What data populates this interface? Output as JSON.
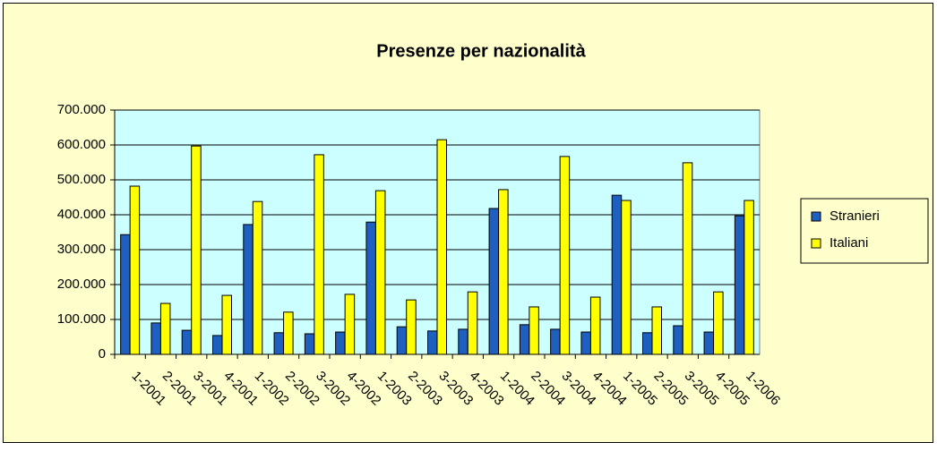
{
  "chart_data": {
    "type": "bar",
    "title": "Presenze per nazionalità",
    "categories": [
      "1-2001",
      "2-2001",
      "3-2001",
      "4-2001",
      "1-2002",
      "2-2002",
      "3-2002",
      "4-2002",
      "1-2003",
      "2-2003",
      "3-2003",
      "4-2003",
      "1-2004",
      "2-2004",
      "3-2004",
      "4-2004",
      "1-2005",
      "2-2005",
      "3-2005",
      "4-2005",
      "1-2006"
    ],
    "series": [
      {
        "name": "Stranieri",
        "color": "#1f5fbf",
        "values": [
          343000,
          90000,
          69000,
          54000,
          372000,
          62000,
          59000,
          64000,
          379000,
          79000,
          67000,
          72000,
          418000,
          85000,
          72000,
          64000,
          456000,
          62000,
          82000,
          64000,
          397000
        ]
      },
      {
        "name": "Italiani",
        "color": "#ffff00",
        "values": [
          482000,
          146000,
          597000,
          169000,
          438000,
          121000,
          572000,
          172000,
          469000,
          156000,
          615000,
          179000,
          472000,
          136000,
          567000,
          164000,
          441000,
          136000,
          549000,
          179000,
          441000
        ]
      }
    ],
    "ylim": [
      0,
      700000
    ],
    "yticks": [
      0,
      {
        "value": 100000,
        "label": "100.000"
      },
      {
        "value": 200000,
        "label": "200.000"
      },
      {
        "value": 300000,
        "label": "300.000"
      },
      {
        "value": 400000,
        "label": "400.000"
      },
      {
        "value": 500000,
        "label": "500.000"
      },
      {
        "value": 600000,
        "label": "600.000"
      },
      {
        "value": 700000,
        "label": "700.000"
      }
    ],
    "grid": true,
    "legend": "right",
    "plot_background": "#ccffff",
    "background": "#ffffcc"
  }
}
